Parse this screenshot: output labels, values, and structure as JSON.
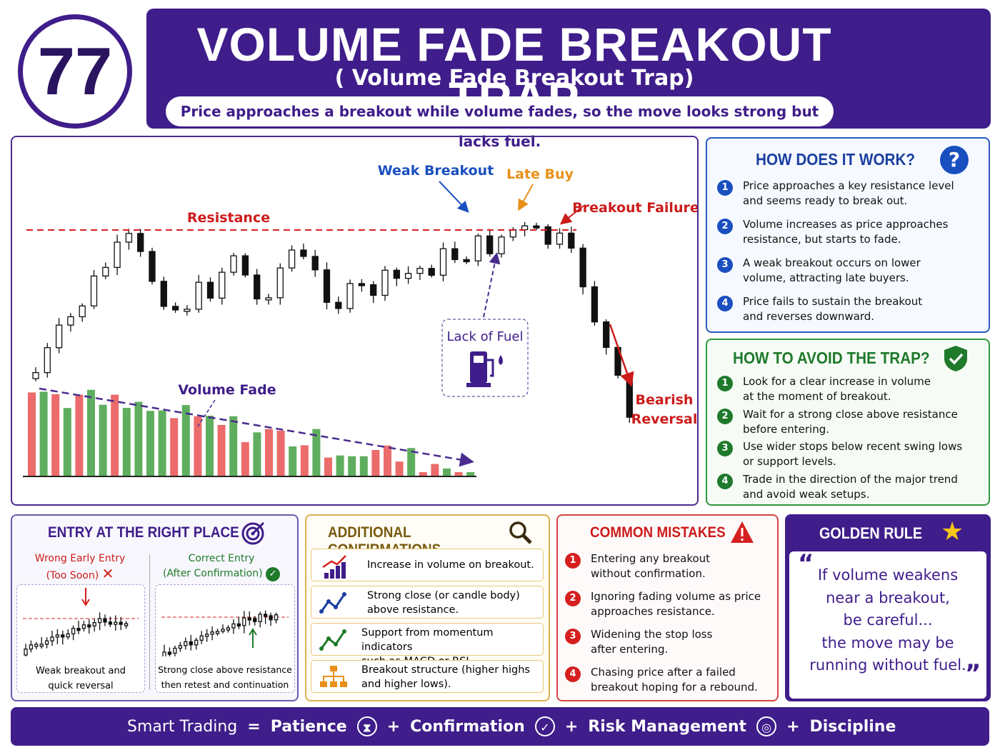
{
  "badge": "77",
  "header": {
    "title": "VOLUME FADE BREAKOUT TRAP",
    "subtitle": "( Volume Fade Breakout Trap)",
    "tagline": "Price approaches a breakout while volume fades, so the move looks strong but lacks fuel."
  },
  "chart_labels": {
    "resistance": "Resistance",
    "weak_breakout": "Weak Breakout",
    "late_buy": "Late Buy",
    "breakout_failure": "Breakout Failure",
    "lack_of_fuel": "Lack of Fuel",
    "volume_fade": "Volume Fade",
    "bearish_reversal": [
      "Bearish",
      "Reversal"
    ]
  },
  "how": {
    "title": "HOW DOES IT WORK?",
    "steps": [
      {
        "num": 1,
        "lines": [
          "Price approaches a key resistance level",
          "and seems ready to break out."
        ]
      },
      {
        "num": 2,
        "lines": [
          "Volume increases as price approaches",
          "resistance, but starts to fade."
        ]
      },
      {
        "num": 3,
        "lines": [
          "A weak breakout occurs on lower",
          "volume, attracting late buyers."
        ]
      },
      {
        "num": 4,
        "lines": [
          "Price fails to sustain the breakout",
          "and reverses downward."
        ]
      }
    ]
  },
  "avoid": {
    "title": "HOW TO AVOID THE TRAP?",
    "steps": [
      {
        "num": 1,
        "lines": [
          "Look for a clear increase in volume",
          "at the moment of breakout."
        ]
      },
      {
        "num": 2,
        "lines": [
          "Wait for a strong close above resistance",
          "before entering."
        ]
      },
      {
        "num": 3,
        "lines": [
          "Use wider stops below recent swing lows",
          "or support levels."
        ]
      },
      {
        "num": 4,
        "lines": [
          "Trade in the direction of the major trend",
          "and avoid weak setups."
        ]
      }
    ]
  },
  "entry": {
    "title": "ENTRY AT THE RIGHT PLACE",
    "wrong": {
      "label": [
        "Wrong Early Entry",
        "(Too Soon)"
      ],
      "caption": [
        "Weak breakout and",
        "quick reversal"
      ]
    },
    "correct": {
      "label": [
        "Correct Entry",
        "(After Confirmation)"
      ],
      "caption": [
        "Strong close above resistance",
        "then retest and continuation"
      ]
    }
  },
  "confirmations": {
    "title": "ADDITIONAL CONFIRMATIONS",
    "items": [
      [
        "Increase in volume on breakout."
      ],
      [
        "Strong close (or candle body)",
        "above resistance."
      ],
      [
        "Support from momentum indicators",
        "such as MACD or RSI."
      ],
      [
        "Breakout structure (higher highs",
        "and higher lows)."
      ]
    ]
  },
  "mistakes": {
    "title": "COMMON MISTAKES",
    "steps": [
      {
        "num": 1,
        "lines": [
          "Entering any breakout",
          "without confirmation."
        ]
      },
      {
        "num": 2,
        "lines": [
          "Ignoring fading volume as price",
          "approaches resistance."
        ]
      },
      {
        "num": 3,
        "lines": [
          "Widening the stop loss",
          "after entering."
        ]
      },
      {
        "num": 4,
        "lines": [
          "Chasing price after a failed",
          "breakout hoping for a rebound."
        ]
      }
    ]
  },
  "golden": {
    "title": "GOLDEN RULE",
    "quote": [
      "If volume weakens",
      "near a breakout,",
      "be careful...",
      "the move may be",
      "running without fuel."
    ]
  },
  "footer": [
    "Smart Trading",
    "=",
    "Patience",
    "+",
    "Confirmation",
    "+",
    "Risk Management",
    "+",
    "Discipline"
  ]
}
